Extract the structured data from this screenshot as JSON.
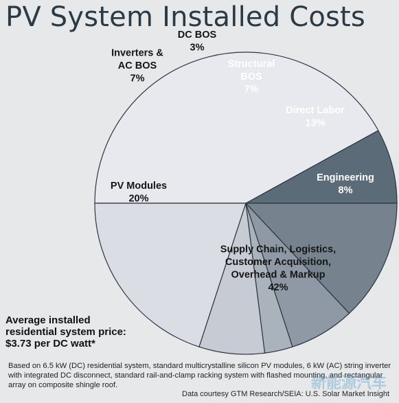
{
  "chart_data": {
    "type": "pie",
    "title": "PV System Installed Costs",
    "slices": [
      {
        "label": "Engineering",
        "value": 8,
        "color": "#5b6b78"
      },
      {
        "label": "Supply Chain, Logistics, Customer Acquisition, Overhead & Markup",
        "value": 42,
        "color": "#e7e9ee"
      },
      {
        "label": "PV Modules",
        "value": 20,
        "color": "#dadde3"
      },
      {
        "label": "Inverters & AC BOS",
        "value": 7,
        "color": "#c7ccd4"
      },
      {
        "label": "DC BOS",
        "value": 3,
        "color": "#aab2bc"
      },
      {
        "label": "Structural BOS",
        "value": 7,
        "color": "#8e99a5"
      },
      {
        "label": "Direct Labor",
        "value": 13,
        "color": "#76838f"
      }
    ],
    "slice_labels": [
      {
        "lines": [
          "Engineering",
          "8%"
        ],
        "color": "#ffffff"
      },
      {
        "lines": [
          "Supply Chain, Logistics,",
          "Customer Acquisition,",
          "Overhead & Markup",
          "42%"
        ],
        "color": "#151515"
      },
      {
        "lines": [
          "PV Modules",
          "20%"
        ],
        "color": "#151515"
      },
      {
        "lines": [
          "Inverters &",
          "AC BOS",
          "7%"
        ],
        "color": "#151515"
      },
      {
        "lines": [
          "DC BOS",
          "3%"
        ],
        "color": "#151515"
      },
      {
        "lines": [
          "Structural",
          "BOS",
          "7%"
        ],
        "color": "#ffffff"
      },
      {
        "lines": [
          "Direct Labor",
          "13%"
        ],
        "color": "#ffffff"
      }
    ]
  },
  "footer": {
    "avg_line1": "Average installed",
    "avg_line2": "residential system price:",
    "avg_line3": "$3.73 per DC watt*",
    "note": "Based on 6.5 kW (DC) residential system, standard multicrystalline silicon PV modules, 6 kW (AC) string inverter with integrated DC disconnect, standard rail-and-clamp racking system with flashed mounting, and rectangular array on composite shingle roof.",
    "credit": "Data courtesy GTM Research/SEIA: U.S. Solar Market Insight",
    "watermark": "新能源汽车"
  }
}
